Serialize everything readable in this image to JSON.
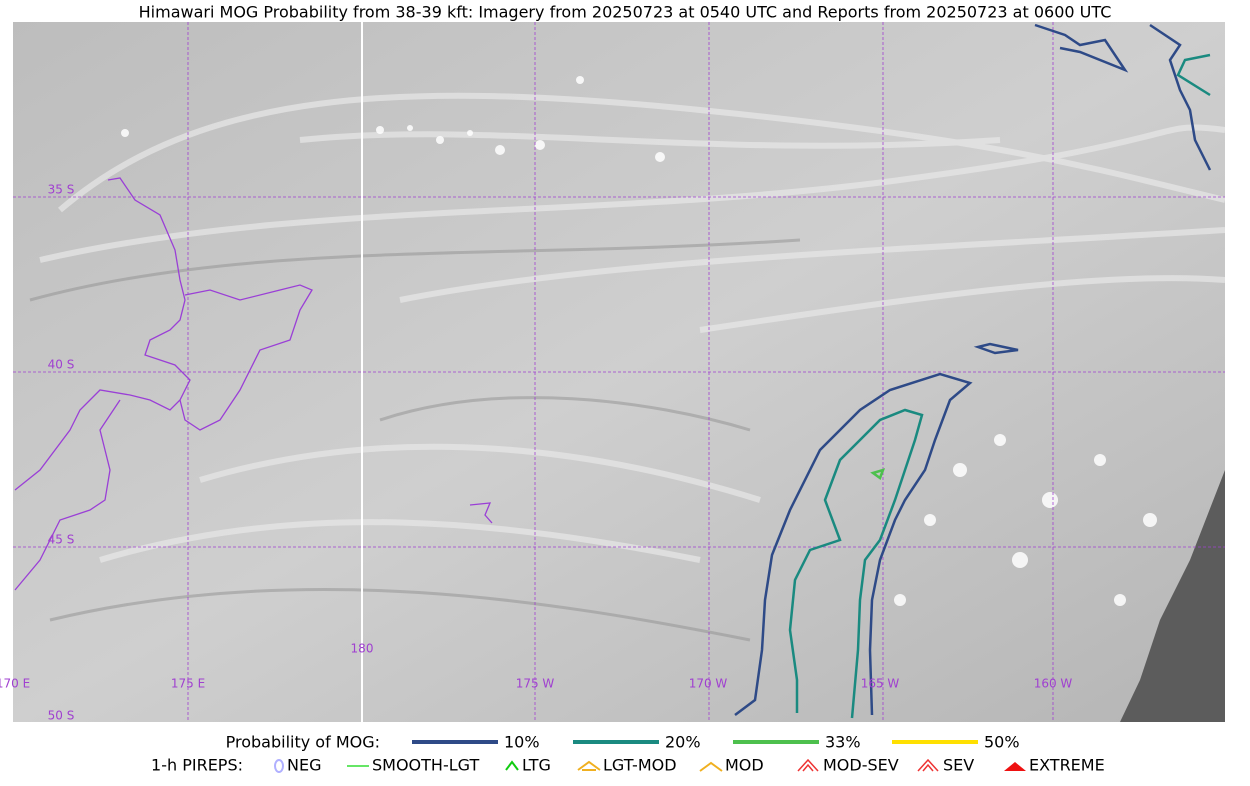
{
  "header": {
    "title": "Himawari MOG Probability from 38-39 kft: Imagery from 20250723 at 0540 UTC and Reports from 20250723 at 0600 UTC"
  },
  "map": {
    "lat_labels": [
      "35 S",
      "40 S",
      "45 S",
      "50 S"
    ],
    "lon_labels": [
      "170 E",
      "175 E",
      "180",
      "175 W",
      "170 W",
      "165 W",
      "160 W"
    ]
  },
  "legend": {
    "probability": {
      "title": "Probability of MOG:",
      "items": [
        {
          "label": "10%",
          "color": "#2e4a87"
        },
        {
          "label": "20%",
          "color": "#1a8a80"
        },
        {
          "label": "33%",
          "color": "#4dc04d"
        },
        {
          "label": "50%",
          "color": "#ffe000"
        }
      ]
    },
    "pireps": {
      "title": "1-h PIREPS:",
      "items": [
        {
          "label": "NEG",
          "color": "#b0b0ff"
        },
        {
          "label": "SMOOTH-LGT",
          "color": "#33dd33"
        },
        {
          "label": "LTG",
          "color": "#11cc11"
        },
        {
          "label": "LGT-MOD",
          "color": "#f0b020"
        },
        {
          "label": "MOD",
          "color": "#f0b020"
        },
        {
          "label": "MOD-SEV",
          "color": "#ee3333"
        },
        {
          "label": "SEV",
          "color": "#ee3333"
        },
        {
          "label": "EXTREME",
          "color": "#ee1111"
        }
      ]
    }
  }
}
